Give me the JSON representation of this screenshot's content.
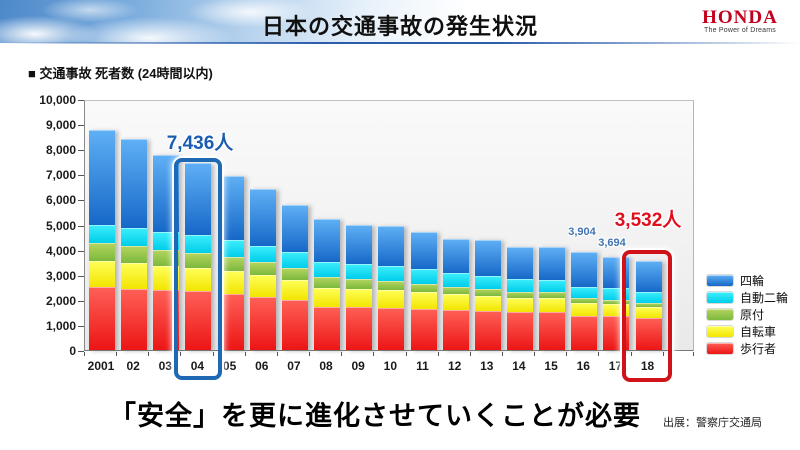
{
  "header": {
    "title": "日本の交通事故の発生状況",
    "logo": {
      "brand": "HONDA",
      "tagline": "The Power of Dreams"
    }
  },
  "chart": {
    "label": "■ 交通事故 死者数 (24時間以内)",
    "annotations": {
      "peak_2004": "7,436人",
      "value_2016": "3,904",
      "value_2017": "3,694",
      "latest_2018": "3,532人"
    }
  },
  "chart_data": {
    "type": "bar",
    "stacked": true,
    "title": "交通事故 死者数 (24時間以内)",
    "categories": [
      "2001",
      "02",
      "03",
      "04",
      "05",
      "06",
      "07",
      "08",
      "09",
      "10",
      "11",
      "12",
      "13",
      "14",
      "15",
      "16",
      "17",
      "18"
    ],
    "totals": [
      8757,
      8396,
      7768,
      7436,
      6937,
      6415,
      5796,
      5209,
      4979,
      4948,
      4691,
      4438,
      4388,
      4113,
      4117,
      3904,
      3694,
      3532
    ],
    "series": [
      {
        "name": "歩行者",
        "color_top": "#ff6057",
        "color_bottom": "#ec1515",
        "values": [
          2500,
          2450,
          2400,
          2350,
          2250,
          2100,
          2000,
          1720,
          1700,
          1690,
          1650,
          1600,
          1550,
          1500,
          1520,
          1360,
          1350,
          1260
        ]
      },
      {
        "name": "自転車",
        "color_top": "#ffff58",
        "color_bottom": "#f2e500",
        "values": [
          1050,
          1020,
          950,
          930,
          900,
          870,
          800,
          760,
          730,
          700,
          660,
          620,
          600,
          560,
          570,
          510,
          480,
          450
        ]
      },
      {
        "name": "原付",
        "color_top": "#b5d55f",
        "color_bottom": "#7cb83d",
        "values": [
          700,
          680,
          640,
          600,
          560,
          520,
          470,
          420,
          400,
          370,
          340,
          310,
          280,
          250,
          230,
          200,
          180,
          160
        ]
      },
      {
        "name": "自動二輪",
        "color_top": "#3deefc",
        "color_bottom": "#00cdea",
        "values": [
          750,
          730,
          720,
          700,
          690,
          660,
          630,
          620,
          600,
          580,
          560,
          540,
          520,
          500,
          480,
          460,
          450,
          440
        ]
      },
      {
        "name": "四輪",
        "color_top": "#5fb0f5",
        "color_bottom": "#1668c8",
        "values": [
          3757,
          3516,
          3058,
          2856,
          2537,
          2265,
          1896,
          1689,
          1549,
          1608,
          1481,
          1368,
          1438,
          1303,
          1317,
          1374,
          1234,
          1222
        ]
      }
    ],
    "legend_order_top_to_bottom": [
      "四輪",
      "自動二輪",
      "原付",
      "自転車",
      "歩行者"
    ],
    "ylabel": "",
    "xlabel": "",
    "ylim": [
      0,
      10000
    ],
    "ytick_step": 1000,
    "grid": false,
    "legend_position": "right",
    "highlighted_categories": [
      "04",
      "18"
    ]
  },
  "footer": {
    "headline": "「安全」を更に進化させていくことが必要",
    "source": "出展：警察庁交通局"
  }
}
